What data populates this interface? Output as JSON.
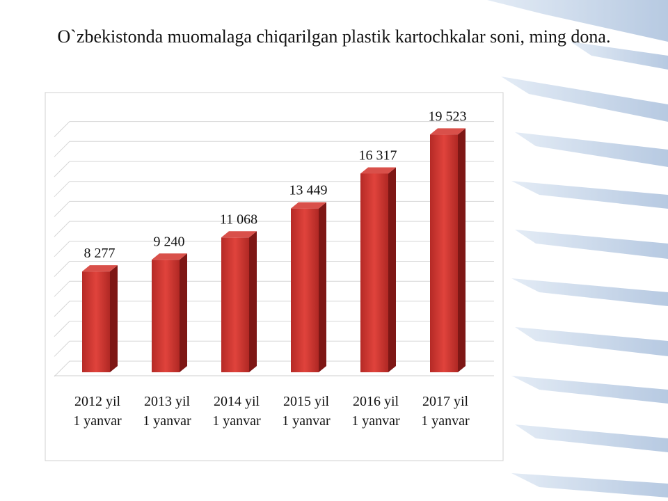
{
  "chart_data": {
    "type": "bar",
    "title": "O`zbekistonda muomalaga chiqarilgan plastik kartochkalar soni, ming dona.",
    "categories": [
      [
        "2012 yil",
        "1 yanvar"
      ],
      [
        "2013 yil",
        "1 yanvar"
      ],
      [
        "2014 yil",
        "1 yanvar"
      ],
      [
        "2015 yil",
        "1 yanvar"
      ],
      [
        "2016 yil",
        "1 yanvar"
      ],
      [
        "2017 yil",
        "1 yanvar"
      ]
    ],
    "values": [
      8277,
      9240,
      11068,
      13449,
      16317,
      19523
    ],
    "value_labels": [
      "8 277",
      "9 240",
      "11 068",
      "13 449",
      "16 317",
      "19 523"
    ],
    "color": "#c9302c",
    "ylim": [
      0,
      22000
    ]
  }
}
